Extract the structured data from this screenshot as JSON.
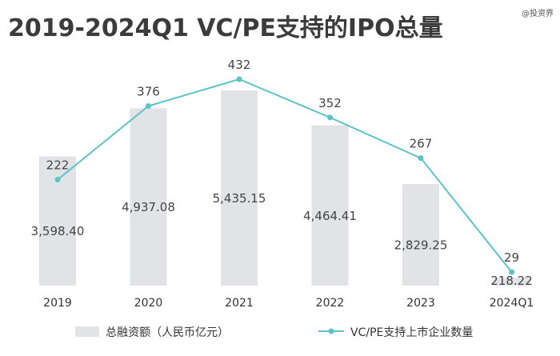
{
  "watermark": "@投资界",
  "chart_data": {
    "type": "bar+line",
    "title": "2019-2024Q1 VC/PE支持的IPO总量",
    "categories": [
      "2019",
      "2020",
      "2021",
      "2022",
      "2023",
      "2024Q1"
    ],
    "series": [
      {
        "name": "总融资额（人民币亿元）",
        "type": "bar",
        "color": "#e2e3e6",
        "values": [
          3598.4,
          4937.08,
          5435.15,
          4464.41,
          2829.25,
          218.22
        ],
        "labels": [
          "3,598.40",
          "4,937.08",
          "5,435.15",
          "4,464.41",
          "2,829.25",
          "218.22"
        ]
      },
      {
        "name": "VC/PE支持上市企业数量",
        "type": "line",
        "color": "#5cc3c9",
        "values": [
          222,
          376,
          432,
          352,
          267,
          29
        ],
        "labels": [
          "222",
          "376",
          "432",
          "352",
          "267",
          "29"
        ]
      }
    ],
    "legend_position": "bottom",
    "grid": false
  }
}
